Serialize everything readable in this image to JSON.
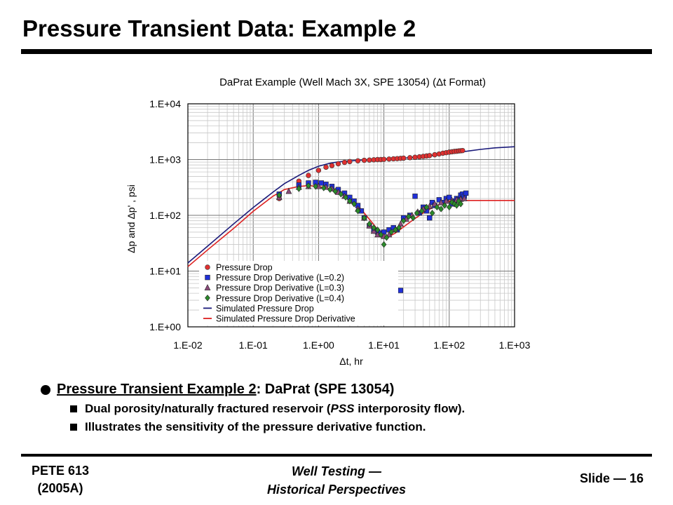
{
  "slide": {
    "title": "Pressure Transient Data: Example 2"
  },
  "chart_data": {
    "type": "scatter",
    "title": "DaPrat Example (Well Mach 3X, SPE 13054) (Δt Format)",
    "xlabel": "Δt, hr",
    "ylabel": "Δp and Δp' , psi",
    "xscale": "log",
    "yscale": "log",
    "xlim": [
      0.01,
      1000
    ],
    "ylim": [
      1,
      10000
    ],
    "xticks": [
      "1.E-02",
      "1.E-01",
      "1.E+00",
      "1.E+01",
      "1.E+02",
      "1.E+03"
    ],
    "yticks": [
      "1.E+00",
      "1.E+01",
      "1.E+02",
      "1.E+03",
      "1.E+04"
    ],
    "grid": true,
    "legend_position": "bottom-left",
    "series": [
      {
        "name": "Pressure Drop",
        "marker": "circle",
        "color": "#e03030",
        "x": [
          0.25,
          0.5,
          0.7,
          1,
          1.3,
          1.6,
          2,
          2.5,
          3,
          4,
          5,
          6,
          7,
          8,
          9,
          10,
          12,
          14,
          16,
          18,
          20,
          25,
          30,
          35,
          40,
          45,
          50,
          60,
          70,
          80,
          90,
          100,
          110,
          120,
          130,
          140,
          150,
          160
        ],
        "y": [
          200,
          410,
          520,
          640,
          730,
          780,
          840,
          890,
          920,
          950,
          970,
          980,
          990,
          1000,
          1000,
          1010,
          1020,
          1030,
          1040,
          1050,
          1060,
          1080,
          1100,
          1120,
          1140,
          1160,
          1180,
          1220,
          1260,
          1300,
          1330,
          1360,
          1380,
          1400,
          1410,
          1430,
          1440,
          1450
        ]
      },
      {
        "name": "Pressure Drop Derivative (L=0.2)",
        "marker": "square",
        "color": "#2030d8",
        "x": [
          0.25,
          0.5,
          0.7,
          0.9,
          1.1,
          1.3,
          1.6,
          2,
          2.5,
          3,
          3.5,
          4,
          4.5,
          5,
          6,
          7,
          8,
          9,
          10,
          12,
          14,
          16,
          18,
          20,
          25,
          30,
          35,
          40,
          45,
          50,
          55,
          60,
          70,
          80,
          90,
          100,
          110,
          120,
          130,
          140,
          150,
          160,
          170,
          180
        ],
        "y": [
          240,
          350,
          380,
          390,
          380,
          360,
          330,
          290,
          250,
          210,
          180,
          150,
          120,
          90,
          65,
          55,
          50,
          48,
          50,
          55,
          60,
          55,
          4.5,
          90,
          100,
          220,
          110,
          140,
          120,
          90,
          170,
          150,
          190,
          170,
          200,
          210,
          160,
          180,
          200,
          190,
          230,
          240,
          220,
          250
        ]
      },
      {
        "name": "Pressure Drop Derivative (L=0.3)",
        "marker": "triangle",
        "color": "#8b4a7a",
        "x": [
          0.25,
          0.35,
          0.5,
          0.7,
          1,
          1.3,
          1.6,
          2,
          2.5,
          3,
          4,
          5,
          6,
          7,
          8,
          10,
          12,
          15,
          18,
          22,
          27,
          33,
          40,
          50,
          60,
          75,
          90,
          110,
          130,
          150,
          170
        ],
        "y": [
          210,
          270,
          320,
          330,
          330,
          320,
          300,
          260,
          220,
          180,
          130,
          90,
          65,
          52,
          45,
          42,
          45,
          55,
          70,
          85,
          100,
          115,
          130,
          145,
          160,
          170,
          180,
          185,
          190,
          195,
          200
        ]
      },
      {
        "name": "Pressure Drop Derivative (L=0.4)",
        "marker": "diamond",
        "color": "#2a8a2a",
        "x": [
          0.25,
          0.5,
          0.7,
          0.9,
          1.2,
          1.5,
          1.8,
          2.2,
          2.6,
          3,
          3.5,
          4,
          5,
          6,
          7,
          8,
          9,
          10,
          11,
          13,
          15,
          17,
          20,
          24,
          28,
          32,
          38,
          45,
          55,
          65,
          75,
          85,
          100,
          110,
          120,
          130,
          140,
          150
        ],
        "y": [
          230,
          300,
          340,
          330,
          310,
          290,
          270,
          240,
          210,
          180,
          160,
          120,
          90,
          70,
          60,
          55,
          45,
          30,
          40,
          50,
          55,
          60,
          80,
          95,
          90,
          110,
          120,
          140,
          110,
          140,
          130,
          150,
          140,
          170,
          160,
          150,
          180,
          160
        ]
      },
      {
        "name": "Simulated Pressure Drop",
        "line": true,
        "color": "#1a1a7a",
        "x": [
          0.01,
          0.02,
          0.05,
          0.1,
          0.2,
          0.3,
          0.5,
          0.7,
          1,
          1.5,
          2,
          3,
          5,
          7,
          10,
          20,
          30,
          50,
          100,
          200,
          300,
          500,
          1000
        ],
        "y": [
          14,
          28,
          70,
          138,
          260,
          370,
          520,
          640,
          760,
          860,
          910,
          950,
          985,
          1000,
          1020,
          1060,
          1100,
          1160,
          1280,
          1430,
          1520,
          1620,
          1700
        ]
      },
      {
        "name": "Simulated Pressure Drop Derivative",
        "line": true,
        "color": "#dd2020",
        "x": [
          0.01,
          0.02,
          0.05,
          0.1,
          0.2,
          0.3,
          0.5,
          0.7,
          1,
          1.5,
          2,
          3,
          4,
          5,
          7,
          8,
          10,
          12,
          15,
          20,
          30,
          40,
          60,
          100,
          150,
          200,
          300,
          500,
          1000
        ],
        "y": [
          12,
          24,
          58,
          118,
          220,
          290,
          330,
          340,
          330,
          300,
          270,
          200,
          150,
          110,
          68,
          55,
          43,
          42,
          48,
          62,
          88,
          110,
          145,
          180,
          185,
          185,
          185,
          185,
          185
        ]
      }
    ]
  },
  "bullets": {
    "main": {
      "underlined": "Pressure Transient Example 2",
      "rest": ": DaPrat (SPE 13054)"
    },
    "sub": [
      {
        "part1": "Dual porosity/naturally fractured reservoir (",
        "italic": "PSS",
        "part2": " interporosity flow)."
      },
      {
        "part1": "Illustrates the sensitivity of the pressure derivative function.",
        "italic": "",
        "part2": ""
      }
    ]
  },
  "footer": {
    "left_line1": "PETE 613",
    "left_line2": "(2005A)",
    "center_line1": "Well Testing —",
    "center_line2": "Historical Perspectives",
    "right": "Slide — 16"
  }
}
